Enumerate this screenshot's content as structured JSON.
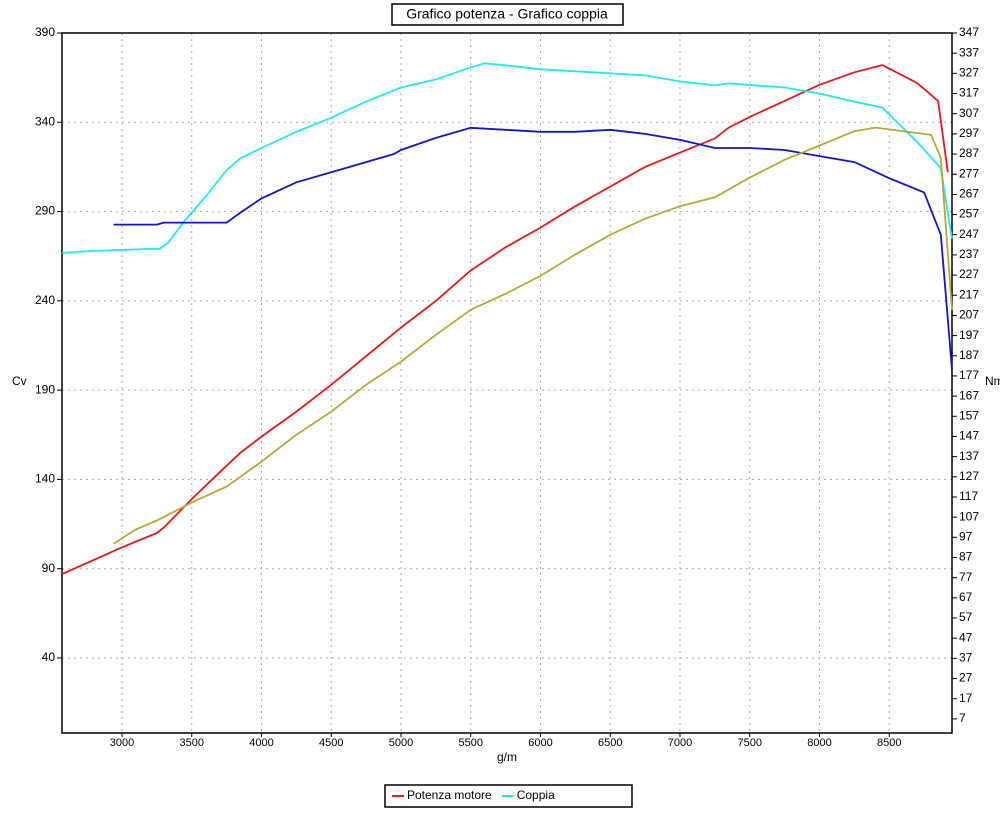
{
  "chart_data": {
    "type": "line",
    "title": "Grafico potenza - Grafico coppia",
    "xlabel": "g/m",
    "ylabel": "Cv",
    "y2label": "Nm",
    "xlim": [
      2570,
      8950
    ],
    "xticks": [
      3000,
      3500,
      4000,
      4500,
      5000,
      5500,
      6000,
      6500,
      7000,
      7500,
      8000,
      8500
    ],
    "ylim": [
      -2,
      390
    ],
    "yticks": [
      40,
      90,
      140,
      190,
      240,
      290,
      340,
      390
    ],
    "y2lim": [
      0,
      347
    ],
    "y2ticks": [
      7,
      17,
      27,
      37,
      47,
      57,
      67,
      77,
      87,
      97,
      107,
      117,
      127,
      137,
      147,
      157,
      167,
      177,
      187,
      197,
      207,
      217,
      227,
      237,
      247,
      257,
      267,
      277,
      287,
      297,
      307,
      317,
      327,
      337,
      347
    ],
    "grid": true,
    "legend": "bottom",
    "series": [
      {
        "name": "Potenza motore",
        "color": "#e31a1c",
        "axis": "y",
        "x": [
          2570,
          2800,
          3000,
          3250,
          3300,
          3500,
          3700,
          3850,
          4000,
          4250,
          4500,
          4750,
          5000,
          5250,
          5500,
          5750,
          6000,
          6250,
          6500,
          6750,
          7000,
          7250,
          7350,
          7500,
          7750,
          8000,
          8250,
          8450,
          8700,
          8850,
          8920
        ],
        "values": [
          87,
          95,
          102,
          110,
          113,
          129,
          144,
          155,
          164,
          178,
          193,
          209,
          225,
          240,
          257,
          270,
          281,
          293,
          304,
          315,
          323,
          331,
          337,
          343,
          352,
          361,
          368,
          372,
          362,
          352,
          312
        ]
      },
      {
        "name": "Coppia",
        "color": "#22e8f0",
        "axis": "y2",
        "x": [
          2570,
          2800,
          3200,
          3270,
          3330,
          3450,
          3600,
          3750,
          3850,
          4000,
          4250,
          4500,
          4750,
          5000,
          5250,
          5500,
          5600,
          5750,
          6000,
          6250,
          6500,
          6750,
          7000,
          7250,
          7350,
          7750,
          8000,
          8250,
          8450,
          8700,
          8870,
          8950
        ],
        "values": [
          238,
          239,
          240,
          240,
          243,
          254,
          266,
          279,
          285,
          290,
          298,
          305,
          313,
          320,
          324,
          330,
          332,
          331,
          329,
          328,
          327,
          326,
          323,
          321,
          322,
          320,
          317,
          313,
          310,
          293,
          280,
          245
        ]
      },
      {
        "color": "#1414c8",
        "axis": "y2",
        "x": [
          2940,
          3250,
          3300,
          3750,
          3850,
          4000,
          4250,
          4500,
          4750,
          4950,
          5000,
          5250,
          5500,
          5750,
          6000,
          6250,
          6500,
          6750,
          7000,
          7250,
          7500,
          7750,
          8000,
          8250,
          8500,
          8750,
          8870,
          8950
        ],
        "values": [
          252,
          252,
          253,
          253,
          258,
          265,
          273,
          278,
          283,
          287,
          289,
          295,
          300,
          299,
          298,
          298,
          299,
          297,
          294,
          290,
          290,
          289,
          286,
          283,
          275,
          268,
          247,
          180
        ]
      },
      {
        "color": "#b8a83a",
        "axis": "y",
        "x": [
          2940,
          3100,
          3250,
          3500,
          3750,
          4000,
          4250,
          4500,
          4750,
          5000,
          5250,
          5500,
          5750,
          6000,
          6250,
          6500,
          6750,
          7000,
          7250,
          7500,
          7750,
          8000,
          8250,
          8400,
          8700,
          8800,
          8870,
          8950
        ],
        "values": [
          104,
          112,
          117,
          127,
          136,
          150,
          165,
          178,
          193,
          206,
          221,
          235,
          244,
          254,
          266,
          277,
          286,
          293,
          298,
          309,
          319,
          327,
          335,
          337,
          334,
          333,
          320,
          235
        ]
      }
    ]
  }
}
